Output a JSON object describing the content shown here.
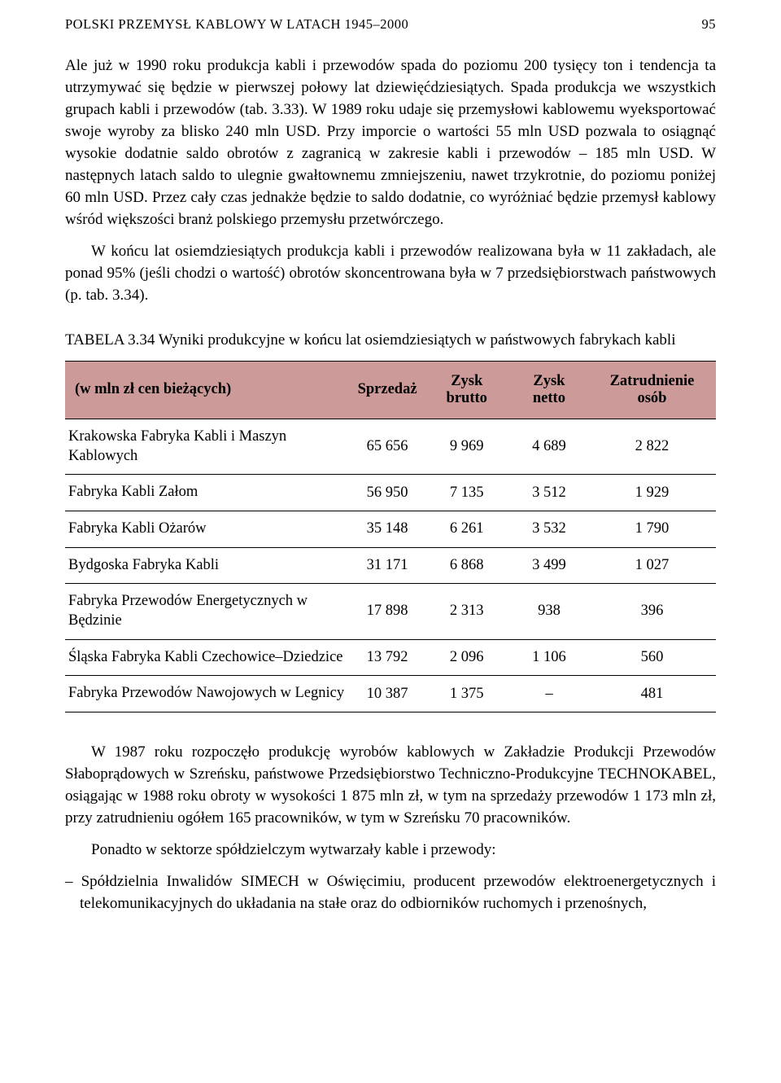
{
  "header": {
    "title": "POLSKI PRZEMYSŁ KABLOWY W LATACH 1945–2000",
    "page_number": "95"
  },
  "paragraphs": {
    "p1": "Ale już w 1990 roku produkcja kabli i przewodów spada do poziomu 200 tysięcy ton i tendencja ta utrzymywać się będzie w pierwszej połowy lat dziewięćdziesiątych. Spada produkcja we wszystkich grupach kabli i przewodów (tab. 3.33). W 1989 roku udaje się przemysłowi kablowemu wyeksportować swoje wyroby za blisko 240 mln USD. Przy imporcie o wartości 55 mln USD pozwala to osiągnąć wysokie dodatnie saldo obrotów z zagranicą w zakresie kabli i przewodów – 185 mln USD. W następnych latach saldo to ulegnie gwałtownemu zmniejszeniu, nawet trzykrotnie, do poziomu poniżej 60 mln USD. Przez cały czas jednakże będzie to saldo dodatnie, co wyróżniać będzie przemysł kablowy wśród większości branż polskiego przemysłu przetwórczego.",
    "p2": "W końcu lat osiemdziesiątych produkcja kabli i przewodów realizowana była w 11 zakładach, ale ponad 95% (jeśli chodzi o wartość) obrotów skoncentrowana była w 7 przedsiębiorstwach państwowych (p. tab. 3.34).",
    "p3": "W 1987 roku rozpoczęło produkcję wyrobów kablowych w Zakładzie Produkcji Przewodów Słaboprądowych w Szreńsku, państwowe Przedsiębiorstwo Techniczno-Produkcyjne TECHNOKABEL, osiągając w 1988 roku obroty w wysokości 1 875 mln zł, w tym na sprzedaży przewodów 1 173 mln zł, przy zatrudnieniu ogółem 165 pracowników, w tym w Szreńsku 70 pracowników.",
    "p4": "Ponadto w sektorze spółdzielczym wytwarzały kable i przewody:",
    "li1": "– Spółdzielnia Inwalidów SIMECH w Oświęcimiu, producent przewodów elektroenergetycznych i telekomunikacyjnych do układania na stałe oraz do odbiorników ruchomych i przenośnych,"
  },
  "table": {
    "caption": "TABELA 3.34 Wyniki produkcyjne w końcu lat osiemdziesiątych w państwowych fabrykach kabli",
    "header_bg": "#cb9a99",
    "columns": [
      "(w mln zł cen bieżących)",
      "Sprzedaż",
      "Zysk brutto",
      "Zysk netto",
      "Zatrudnienie osób"
    ],
    "rows": [
      [
        "Krakowska Fabryka Kabli i Maszyn Kablowych",
        "65 656",
        "9 969",
        "4 689",
        "2 822"
      ],
      [
        "Fabryka Kabli Załom",
        "56 950",
        "7 135",
        "3 512",
        "1 929"
      ],
      [
        "Fabryka Kabli Ożarów",
        "35 148",
        "6 261",
        "3 532",
        "1 790"
      ],
      [
        "Bydgoska Fabryka Kabli",
        "31 171",
        "6 868",
        "3 499",
        "1 027"
      ],
      [
        "Fabryka Przewodów Energetycznych w Będzinie",
        "17 898",
        "2 313",
        "938",
        "396"
      ],
      [
        "Śląska Fabryka Kabli Czechowice–Dziedzice",
        "13 792",
        "2 096",
        "1 106",
        "560"
      ],
      [
        "Fabryka Przewodów Nawojowych w Legnicy",
        "10 387",
        "1 375",
        "–",
        "481"
      ]
    ]
  }
}
